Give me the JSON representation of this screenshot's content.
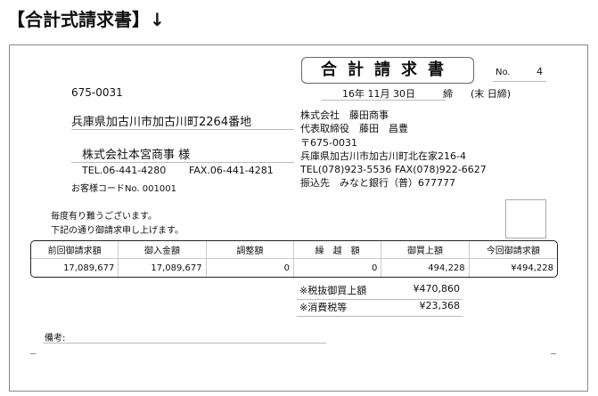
{
  "heading": "【合計式請求書】↓",
  "customer": {
    "postal": "675-0031",
    "address": "兵庫県加古川市加古川町2264番地",
    "name": "株式会社本宮商事 様",
    "tel": "TEL.06-441-4280",
    "fax": "FAX.06-441-4281",
    "code": "お客様コードNo. 001001"
  },
  "doc": {
    "title": "合計請求書",
    "no_label": "No.",
    "no": "4",
    "date": "16年 11月 30日",
    "close": "締",
    "close_note": "(末 日締)"
  },
  "issuer": {
    "lines": [
      "株式会社　藤田商事",
      "代表取締役　藤田　昌豊",
      "〒675-0031",
      "兵庫県加古川市加古川町北在家216-4",
      "TEL(078)923-5536 FAX(078)922-6627",
      "振込先　みなと銀行（普）677777"
    ]
  },
  "greeting": [
    "毎度有り難うございます。",
    "下記の通り御請求申し上げます。"
  ],
  "table": {
    "headers": [
      "前回御請求額",
      "御入金額",
      "調整額",
      "繰　越　額",
      "御買上額",
      "今回御請求額"
    ],
    "values": [
      "17,089,677",
      "17,089,677",
      "0",
      "0",
      "494,228",
      "¥494,228"
    ]
  },
  "summary": [
    {
      "label": "※税抜御買上額",
      "value": "¥470,860"
    },
    {
      "label": "※消費税等",
      "value": "¥23,368"
    }
  ],
  "remarks_label": "備考:"
}
